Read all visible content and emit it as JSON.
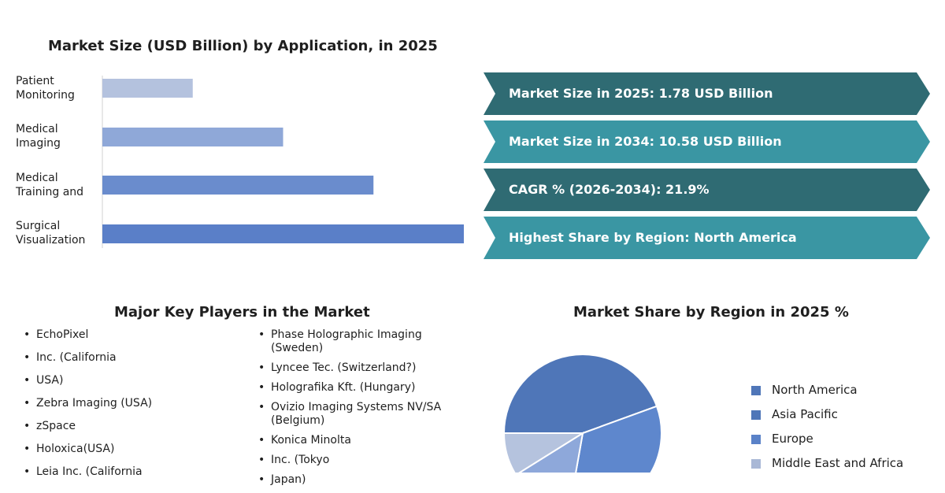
{
  "bar_chart": {
    "title": "Market Size (USD Billion) by Application, in 2025",
    "categories": [
      {
        "label": "Patient Monitoring",
        "lines": [
          "Patient",
          "Monitoring"
        ]
      },
      {
        "label": "Medical Imaging",
        "lines": [
          "Medical",
          "Imaging"
        ]
      },
      {
        "label": "Medical Training and",
        "lines": [
          "Medical",
          "Training and"
        ]
      },
      {
        "label": "Surgical Visualization",
        "lines": [
          "Surgical",
          "Visualization"
        ]
      }
    ],
    "colors": [
      "#b4c2de",
      "#8fa8d8",
      "#6a8ccd",
      "#5a7fc8"
    ]
  },
  "kpis": [
    {
      "text": "Market Size in 2025: 1.78 USD Billion",
      "color": "#2f6b73"
    },
    {
      "text": "Market Size in 2034: 10.58 USD Billion",
      "color": "#3a96a3"
    },
    {
      "text": "CAGR % (2026-2034): 21.9%",
      "color": "#2f6b73"
    },
    {
      "text": "Highest Share by Region: North America",
      "color": "#3a96a3"
    }
  ],
  "players": {
    "title": "Major Key Players in the Market",
    "left": [
      "EchoPixel",
      "Inc. (California",
      "USA)",
      "Zebra Imaging (USA)",
      "zSpace",
      "Holoxica(USA)",
      "Leia Inc. (California"
    ],
    "right": [
      [
        "Phase Holographic Imaging",
        "(Sweden)"
      ],
      [
        "Lyncee Tec. (Switzerland?)"
      ],
      [
        "Holografika Kft. (Hungary)"
      ],
      [
        "Ovizio Imaging Systems NV/SA",
        "(Belgium)"
      ],
      [
        "Konica Minolta"
      ],
      [
        "Inc. (Tokyo"
      ],
      [
        "Japan)"
      ]
    ]
  },
  "pie": {
    "title": "Market Share by Region in 2025 %",
    "legend": [
      {
        "label": "North America",
        "color": "#4f76b8"
      },
      {
        "label": "Asia Pacific",
        "color": "#4f76b8"
      },
      {
        "label": "Europe",
        "color": "#5a82c8"
      },
      {
        "label": "Middle East and Africa",
        "color": "#a9b8d6"
      }
    ]
  },
  "chart_data": [
    {
      "type": "bar",
      "orientation": "horizontal",
      "title": "Market Size (USD Billion) by Application, in 2025",
      "categories": [
        "Patient Monitoring",
        "Medical Imaging",
        "Medical Training and",
        "Surgical Visualization"
      ],
      "values": [
        0.2,
        0.4,
        0.6,
        0.8
      ],
      "xlabel": "",
      "ylabel": "",
      "xlim": [
        0,
        0.8
      ],
      "grid": false
    },
    {
      "type": "pie",
      "title": "Market Share by Region in 2025 %",
      "categories": [
        "North America",
        "Asia Pacific",
        "Europe",
        "Middle East and Africa"
      ],
      "values": [
        40,
        30,
        12,
        8
      ],
      "legend": "right"
    }
  ]
}
